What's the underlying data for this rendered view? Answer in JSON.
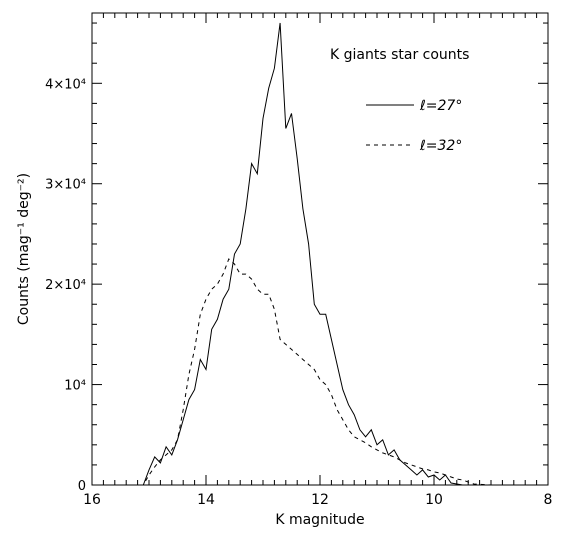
{
  "chart_data": {
    "type": "line",
    "title": "K giants star counts",
    "xlabel": "K magnitude",
    "ylabel": "Counts (mag⁻¹ deg⁻²)",
    "xlim": [
      16,
      8
    ],
    "ylim": [
      0,
      47000
    ],
    "x_ticks": [
      {
        "value": 16,
        "label": "16"
      },
      {
        "value": 14,
        "label": "14"
      },
      {
        "value": 12,
        "label": "12"
      },
      {
        "value": 10,
        "label": "10"
      },
      {
        "value": 8,
        "label": "8"
      }
    ],
    "y_ticks": [
      {
        "value": 0,
        "label": "0"
      },
      {
        "value": 10000,
        "label": "10⁴"
      },
      {
        "value": 20000,
        "label": "2×10⁴"
      },
      {
        "value": 30000,
        "label": "3×10⁴"
      },
      {
        "value": 40000,
        "label": "4×10⁴"
      }
    ],
    "series": [
      {
        "name": "ℓ=27°",
        "style": "solid",
        "color": "#000000",
        "x": [
          16.0,
          15.1,
          15.0,
          14.9,
          14.8,
          14.7,
          14.6,
          14.5,
          14.4,
          14.3,
          14.2,
          14.1,
          14.0,
          13.9,
          13.8,
          13.7,
          13.6,
          13.5,
          13.4,
          13.3,
          13.2,
          13.1,
          13.0,
          12.9,
          12.8,
          12.7,
          12.6,
          12.5,
          12.4,
          12.3,
          12.2,
          12.1,
          12.0,
          11.9,
          11.8,
          11.7,
          11.6,
          11.5,
          11.4,
          11.3,
          11.2,
          11.1,
          11.0,
          10.9,
          10.8,
          10.7,
          10.6,
          10.5,
          10.4,
          10.3,
          10.2,
          10.1,
          10.0,
          9.9,
          9.8,
          9.7,
          9.6,
          9.5,
          9.4,
          9.0,
          8.0
        ],
        "y": [
          0,
          0,
          1500,
          2800,
          2200,
          3800,
          3000,
          4500,
          6500,
          8500,
          9500,
          12500,
          11500,
          15500,
          16500,
          18500,
          19500,
          23000,
          24000,
          27500,
          32000,
          31000,
          36500,
          39500,
          41500,
          46000,
          35500,
          37000,
          32500,
          27500,
          24000,
          18000,
          17000,
          17000,
          14500,
          12000,
          9500,
          8000,
          7000,
          5500,
          4800,
          5500,
          4000,
          4500,
          3000,
          3500,
          2500,
          2000,
          1500,
          1000,
          1500,
          800,
          1000,
          500,
          1000,
          200,
          100,
          0,
          0,
          0,
          0
        ]
      },
      {
        "name": "ℓ=32°",
        "style": "dashed",
        "color": "#000000",
        "x": [
          16.0,
          15.1,
          15.0,
          14.9,
          14.8,
          14.7,
          14.6,
          14.5,
          14.4,
          14.3,
          14.2,
          14.1,
          14.0,
          13.9,
          13.8,
          13.7,
          13.6,
          13.5,
          13.4,
          13.3,
          13.2,
          13.1,
          13.0,
          12.9,
          12.8,
          12.7,
          12.6,
          12.5,
          12.4,
          12.3,
          12.2,
          12.1,
          12.0,
          11.9,
          11.8,
          11.7,
          11.6,
          11.5,
          11.4,
          11.3,
          11.2,
          11.1,
          11.0,
          10.9,
          10.8,
          10.7,
          10.6,
          10.5,
          10.4,
          10.3,
          10.2,
          10.1,
          10.0,
          9.9,
          9.8,
          9.7,
          9.6,
          9.5,
          9.4,
          9.3,
          9.0,
          8.0
        ],
        "y": [
          0,
          0,
          1000,
          1800,
          2500,
          3000,
          3500,
          4500,
          7500,
          11000,
          13500,
          17000,
          18500,
          19500,
          20000,
          21000,
          22500,
          22000,
          21000,
          21000,
          20500,
          19500,
          19000,
          19000,
          17500,
          14500,
          14000,
          13500,
          13000,
          12500,
          12000,
          11500,
          10500,
          10000,
          9000,
          7500,
          6500,
          5500,
          4800,
          4500,
          4200,
          3800,
          3500,
          3200,
          3000,
          2800,
          2500,
          2200,
          2000,
          1800,
          1600,
          1500,
          1300,
          1200,
          1000,
          800,
          600,
          500,
          300,
          100,
          0,
          0
        ]
      }
    ]
  }
}
